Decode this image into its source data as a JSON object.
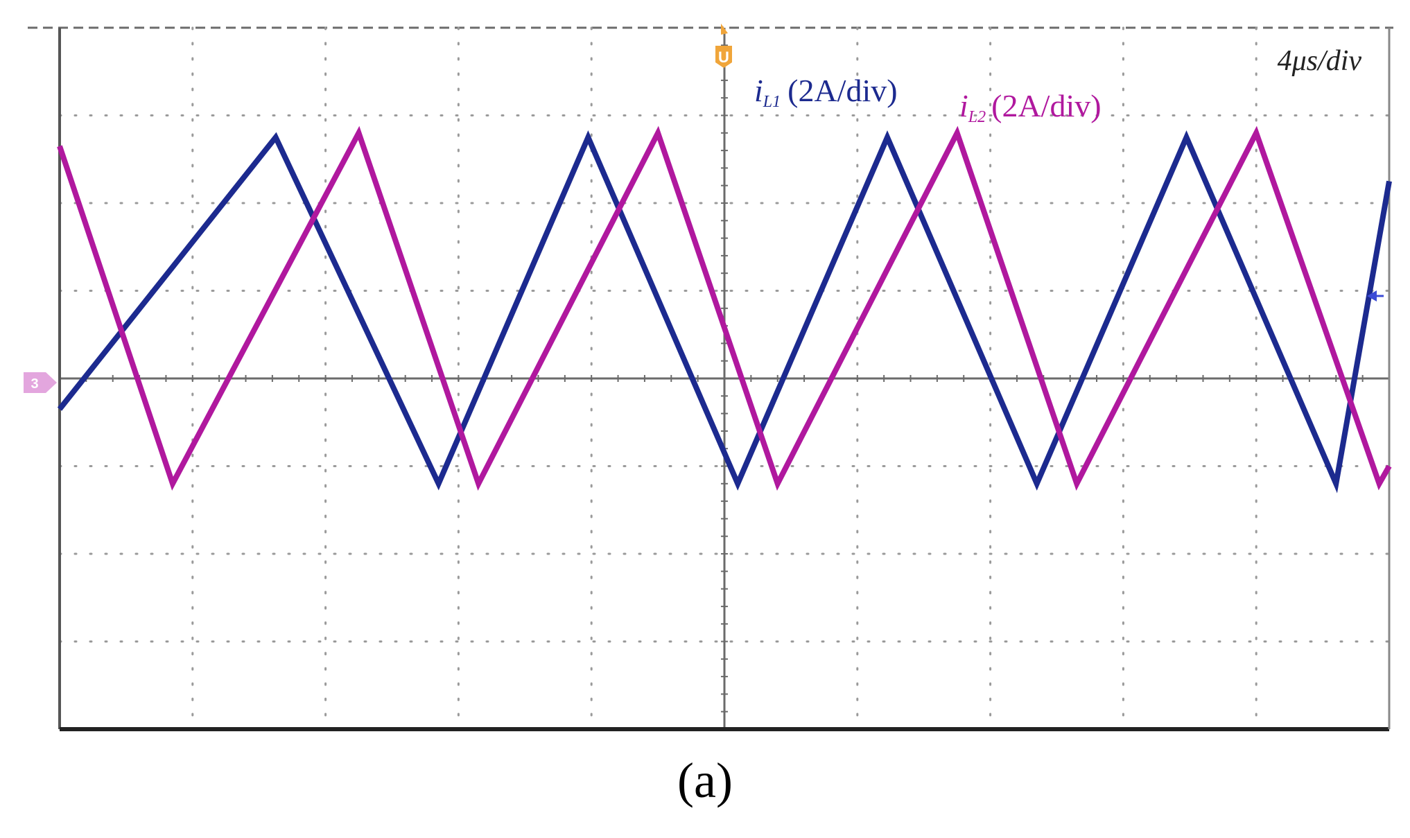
{
  "chart_data": {
    "type": "line",
    "timebase": "4μs/div",
    "x_divisions": 10,
    "y_divisions": 8,
    "ground_level_div": 4,
    "series": [
      {
        "name_symbol": "i",
        "name_subscript": "L1",
        "scale": "(2A/div)",
        "color": "#1c2a8f",
        "unit": "A",
        "x_unit": "μs",
        "x": [
          0,
          6.5,
          11.4,
          15.9,
          20.4,
          24.9,
          29.4,
          33.9,
          38.4,
          40
        ],
        "y": [
          -0.7,
          5.5,
          -2.4,
          5.5,
          -2.4,
          5.5,
          -2.4,
          5.5,
          -2.4,
          4.5
        ]
      },
      {
        "name_symbol": "i",
        "name_subscript": "L2",
        "scale": "(2A/div)",
        "color": "#b0189e",
        "unit": "A",
        "x_unit": "μs",
        "x": [
          0,
          3.4,
          9.0,
          12.6,
          18.0,
          21.6,
          27.0,
          30.6,
          36.0,
          39.7,
          40
        ],
        "y": [
          5.3,
          -2.4,
          5.6,
          -2.4,
          5.6,
          -2.4,
          5.6,
          -2.4,
          5.6,
          -2.4,
          -2.0
        ]
      }
    ]
  },
  "caption": "(a)",
  "colors": {
    "trigger_marker": "#f0a53a",
    "ground_marker": "#e3a6de",
    "cursor_marker": "#3b4bd6"
  },
  "icons": {
    "trigger": "trigger-position-marker-icon",
    "ground": "channel-ground-marker-icon",
    "cursor": "trigger-level-marker-icon"
  }
}
